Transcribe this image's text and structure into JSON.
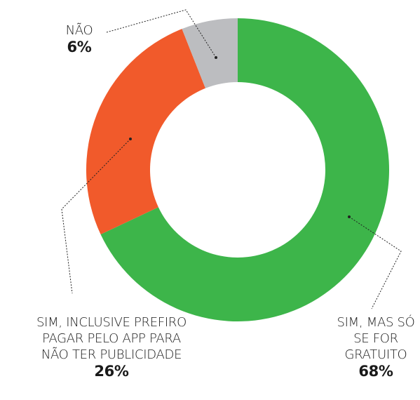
{
  "chart_data": {
    "type": "donut",
    "categories": [
      "SIM, MAS SÓ SE FOR GRATUITO",
      "SIM, INCLUSIVE PREFIRO PAGAR PELO APP PARA NÃO TER PUBLICIDADE",
      "NÃO"
    ],
    "values": [
      68,
      26,
      6
    ],
    "value_labels": [
      "68%",
      "26%",
      "6%"
    ],
    "colors": [
      "#3db54a",
      "#f15a2b",
      "#bcbdc0"
    ]
  }
}
